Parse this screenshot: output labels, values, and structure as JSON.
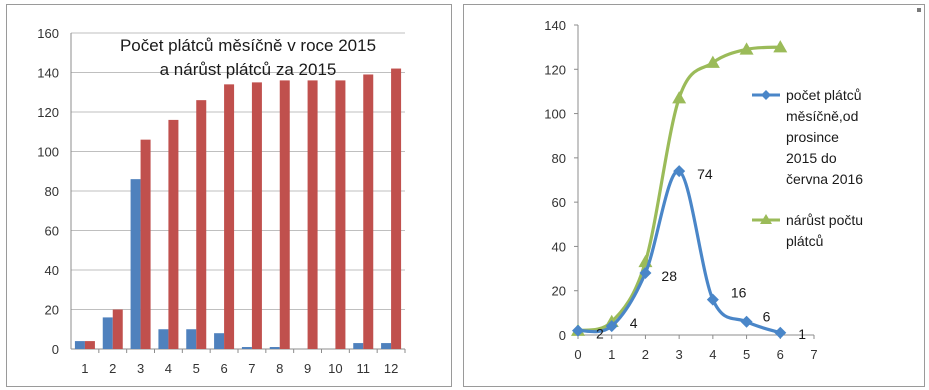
{
  "chart_data": [
    {
      "type": "bar",
      "title_lines": [
        "Počet plátců měsíčně v roce 2015",
        "a nárůst plátců za 2015"
      ],
      "categories": [
        "1",
        "2",
        "3",
        "4",
        "5",
        "6",
        "7",
        "8",
        "9",
        "10",
        "11",
        "12"
      ],
      "series": [
        {
          "values": [
            4,
            16,
            86,
            10,
            10,
            8,
            1,
            1,
            0,
            0,
            3,
            3
          ],
          "color": "#4f81bd"
        },
        {
          "values": [
            4,
            20,
            106,
            116,
            126,
            134,
            135,
            136,
            136,
            136,
            139,
            142
          ],
          "color": "#c0504d"
        }
      ],
      "ylim": [
        0,
        160
      ],
      "yticks": [
        "0",
        "20",
        "40",
        "60",
        "80",
        "100",
        "120",
        "140",
        "160"
      ],
      "grid": true
    },
    {
      "type": "line",
      "x": [
        0,
        1,
        2,
        3,
        4,
        5,
        6
      ],
      "xticks": [
        "0",
        "1",
        "2",
        "3",
        "4",
        "5",
        "6",
        "7"
      ],
      "xlim": [
        0,
        7
      ],
      "ylim": [
        0,
        140
      ],
      "yticks": [
        "0",
        "20",
        "40",
        "60",
        "80",
        "100",
        "120",
        "140"
      ],
      "series": [
        {
          "name": "počet plátců měsíčně,od prosince 2015 do června 2016",
          "name_lines": [
            "počet plátců",
            "měsíčně,od",
            "prosince",
            "2015 do",
            "června 2016"
          ],
          "values": [
            2,
            4,
            28,
            74,
            16,
            6,
            1
          ],
          "data_labels": [
            "2",
            "4",
            "28",
            "74",
            "16",
            "6",
            "1"
          ],
          "color": "#4a86c8",
          "marker": "diamond"
        },
        {
          "name": "nárůst počtu plátců",
          "name_lines": [
            "nárůst počtu",
            "plátců"
          ],
          "values": [
            2,
            6,
            33,
            107,
            123,
            129,
            130
          ],
          "color": "#9bbb59",
          "marker": "triangle"
        }
      ],
      "legend_position": "right",
      "grid": false
    }
  ]
}
